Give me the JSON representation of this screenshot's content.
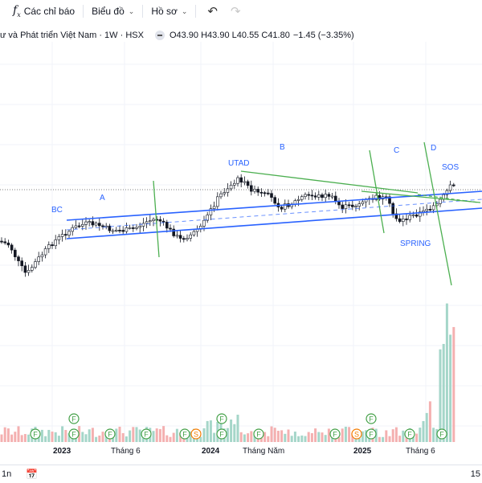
{
  "toolbar": {
    "indicators_label": "Các chỉ báo",
    "chart_label": "Biểu đồ",
    "profile_label": "Hồ sơ"
  },
  "legend": {
    "title": "ư và Phát triển Việt Nam · 1W · HSX",
    "open": "O43.90",
    "high": "H43.90",
    "low": "L40.55",
    "close": "C41.80",
    "change": "−1.45 (−3.35%)"
  },
  "annotations": {
    "bc": "BC",
    "a": "A",
    "utad": "UTAD",
    "b": "B",
    "c": "C",
    "d": "D",
    "sos": "SOS",
    "spring": "SPRING"
  },
  "x_axis": {
    "y2023": "2023",
    "jun1": "Tháng 6",
    "y2024": "2024",
    "thang_nam": "Tháng Năm",
    "y2025": "2025",
    "jun2": "Tháng 6"
  },
  "bottom": {
    "interval": "1n",
    "right_label": "15"
  },
  "event_markers": {
    "f": "F",
    "s": "S"
  },
  "colors": {
    "up": "#26a69a",
    "down": "#ef5350",
    "channel": "#2962ff",
    "trendline": "#4caf50",
    "vol_up": "#a5d6c9",
    "vol_down": "#f4b0b0"
  }
}
